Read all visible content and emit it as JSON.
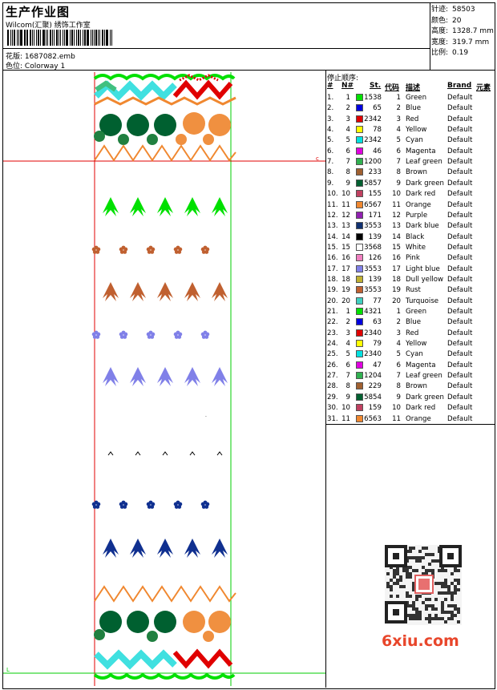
{
  "header": {
    "title": "生产作业图",
    "company": "Wilcom(汇聚) 绣饰工作室",
    "file_label": "花版:",
    "file_value": "1687082.emb",
    "colorway_label": "色位:",
    "colorway_value": "Colorway 1"
  },
  "stats": [
    {
      "key": "针迹:",
      "value": "58503"
    },
    {
      "key": "颜色:",
      "value": "20"
    },
    {
      "key": "高度:",
      "value": "1328.7 mm"
    },
    {
      "key": "宽度:",
      "value": "319.7 mm"
    },
    {
      "key": "比例:",
      "value": "0.19"
    }
  ],
  "color_table": {
    "title": "停止顺序:",
    "headers": {
      "stop": "#",
      "no": "N#",
      "st": "St.",
      "code": "代码",
      "desc": "描述",
      "brand": "Brand",
      "elem": "元素"
    },
    "rows": [
      {
        "stop": "1.",
        "no": "1",
        "color": "#00e000",
        "st": "1538",
        "code": "1",
        "desc": "Green",
        "brand": "Default"
      },
      {
        "stop": "2.",
        "no": "2",
        "color": "#0000e0",
        "st": "65",
        "code": "2",
        "desc": "Blue",
        "brand": "Default"
      },
      {
        "stop": "3.",
        "no": "3",
        "color": "#e00000",
        "st": "2342",
        "code": "3",
        "desc": "Red",
        "brand": "Default"
      },
      {
        "stop": "4.",
        "no": "4",
        "color": "#ffff00",
        "st": "78",
        "code": "4",
        "desc": "Yellow",
        "brand": "Default"
      },
      {
        "stop": "5.",
        "no": "5",
        "color": "#00e0e0",
        "st": "2342",
        "code": "5",
        "desc": "Cyan",
        "brand": "Default"
      },
      {
        "stop": "6.",
        "no": "6",
        "color": "#e000e0",
        "st": "46",
        "code": "6",
        "desc": "Magenta",
        "brand": "Default"
      },
      {
        "stop": "7.",
        "no": "7",
        "color": "#30b050",
        "st": "1200",
        "code": "7",
        "desc": "Leaf green",
        "brand": "Default"
      },
      {
        "stop": "8.",
        "no": "8",
        "color": "#a06030",
        "st": "233",
        "code": "8",
        "desc": "Brown",
        "brand": "Default"
      },
      {
        "stop": "9.",
        "no": "9",
        "color": "#006030",
        "st": "5857",
        "code": "9",
        "desc": "Dark green",
        "brand": "Default"
      },
      {
        "stop": "10.",
        "no": "10",
        "color": "#c04060",
        "st": "155",
        "code": "10",
        "desc": "Dark red",
        "brand": "Default"
      },
      {
        "stop": "11.",
        "no": "11",
        "color": "#f08830",
        "st": "6567",
        "code": "11",
        "desc": "Orange",
        "brand": "Default"
      },
      {
        "stop": "12.",
        "no": "12",
        "color": "#9020b0",
        "st": "171",
        "code": "12",
        "desc": "Purple",
        "brand": "Default"
      },
      {
        "stop": "13.",
        "no": "13",
        "color": "#103070",
        "st": "3553",
        "code": "13",
        "desc": "Dark blue",
        "brand": "Default"
      },
      {
        "stop": "14.",
        "no": "14",
        "color": "#000000",
        "st": "139",
        "code": "14",
        "desc": "Black",
        "brand": "Default"
      },
      {
        "stop": "15.",
        "no": "15",
        "color": "#ffffff",
        "st": "3568",
        "code": "15",
        "desc": "White",
        "brand": "Default"
      },
      {
        "stop": "16.",
        "no": "16",
        "color": "#f080c0",
        "st": "126",
        "code": "16",
        "desc": "Pink",
        "brand": "Default"
      },
      {
        "stop": "17.",
        "no": "17",
        "color": "#8080e8",
        "st": "3553",
        "code": "17",
        "desc": "Light blue",
        "brand": "Default"
      },
      {
        "stop": "18.",
        "no": "18",
        "color": "#c0b030",
        "st": "139",
        "code": "18",
        "desc": "Dull yellow",
        "brand": "Default"
      },
      {
        "stop": "19.",
        "no": "19",
        "color": "#c06030",
        "st": "3553",
        "code": "19",
        "desc": "Rust",
        "brand": "Default"
      },
      {
        "stop": "20.",
        "no": "20",
        "color": "#40d0c0",
        "st": "77",
        "code": "20",
        "desc": "Turquoise",
        "brand": "Default"
      },
      {
        "stop": "21.",
        "no": "1",
        "color": "#00e000",
        "st": "4321",
        "code": "1",
        "desc": "Green",
        "brand": "Default"
      },
      {
        "stop": "22.",
        "no": "2",
        "color": "#0000e0",
        "st": "63",
        "code": "2",
        "desc": "Blue",
        "brand": "Default"
      },
      {
        "stop": "23.",
        "no": "3",
        "color": "#e00000",
        "st": "2340",
        "code": "3",
        "desc": "Red",
        "brand": "Default"
      },
      {
        "stop": "24.",
        "no": "4",
        "color": "#ffff00",
        "st": "79",
        "code": "4",
        "desc": "Yellow",
        "brand": "Default"
      },
      {
        "stop": "25.",
        "no": "5",
        "color": "#00e0e0",
        "st": "2340",
        "code": "5",
        "desc": "Cyan",
        "brand": "Default"
      },
      {
        "stop": "26.",
        "no": "6",
        "color": "#e000e0",
        "st": "47",
        "code": "6",
        "desc": "Magenta",
        "brand": "Default"
      },
      {
        "stop": "27.",
        "no": "7",
        "color": "#30b050",
        "st": "1204",
        "code": "7",
        "desc": "Leaf green",
        "brand": "Default"
      },
      {
        "stop": "28.",
        "no": "8",
        "color": "#a06030",
        "st": "229",
        "code": "8",
        "desc": "Brown",
        "brand": "Default"
      },
      {
        "stop": "29.",
        "no": "9",
        "color": "#006030",
        "st": "5854",
        "code": "9",
        "desc": "Dark green",
        "brand": "Default"
      },
      {
        "stop": "30.",
        "no": "10",
        "color": "#c04060",
        "st": "159",
        "code": "10",
        "desc": "Dark red",
        "brand": "Default"
      },
      {
        "stop": "31.",
        "no": "11",
        "color": "#f08830",
        "st": "6563",
        "code": "11",
        "desc": "Orange",
        "brand": "Default"
      }
    ]
  },
  "watermark": {
    "logo_text": "6xiu.com"
  },
  "design_motifs": {
    "rows": [
      {
        "type": "leaf",
        "color": "#00e000"
      },
      {
        "type": "flower",
        "color": "#c06030"
      },
      {
        "type": "leaf",
        "color": "#c06030"
      },
      {
        "type": "flower",
        "color": "#8080e8"
      },
      {
        "type": "leaf",
        "color": "#8080e8"
      },
      {
        "type": "caret",
        "color": "#000000"
      },
      {
        "type": "flower",
        "color": "#103090"
      },
      {
        "type": "leaf",
        "color": "#103090"
      }
    ]
  }
}
